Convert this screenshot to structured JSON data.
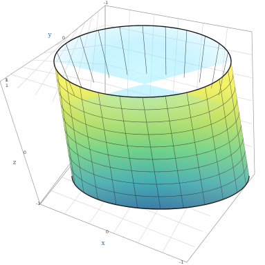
{
  "chart_data": {
    "type": "surface",
    "surface": "elliptic-cylinder",
    "colormap": "viridis-like",
    "axes": {
      "x": {
        "label": "x",
        "ticks": [
          "1",
          "0",
          "-1"
        ]
      },
      "y": {
        "label": "y",
        "ticks": [
          "-1",
          "0",
          "1"
        ]
      },
      "z": {
        "label": "z",
        "ticks": [
          "-1",
          "0",
          "1"
        ]
      }
    },
    "grid": true,
    "mesh": {
      "angular_divisions": 24,
      "height_divisions": 9
    }
  },
  "colors": {
    "surface_low": "#2f74a8",
    "surface_mid": "#56c5a7",
    "surface_high": "#fff35a",
    "box": "#9a9a9a",
    "grid": "#d2d2d2",
    "axis_label": "#3c6fa0",
    "tick_label": "#444444",
    "mesh": "#1d1d1d"
  }
}
